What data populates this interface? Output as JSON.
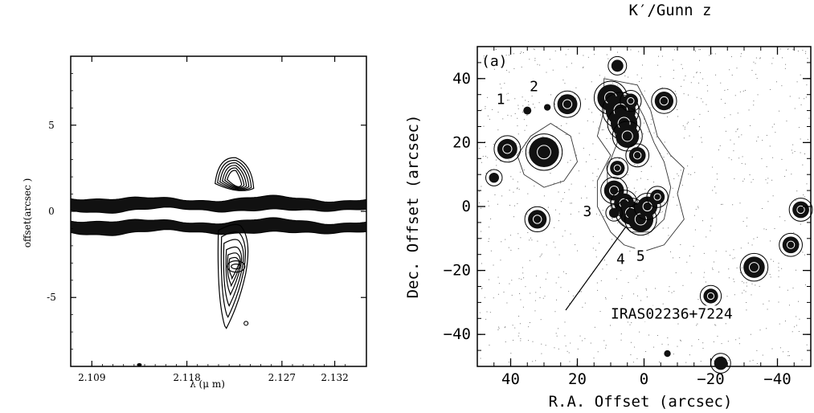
{
  "chart_data": [
    {
      "type": "contour",
      "panel": "left",
      "xlabel": "λ (μ m)",
      "ylabel": "offset(arcsec    )",
      "xlim": [
        2.107,
        2.135
      ],
      "ylim": [
        -9,
        9
      ],
      "x_ticks": [
        2.109,
        2.118,
        2.127,
        2.132
      ],
      "x_tick_labels": [
        "2.109",
        "2.118",
        "2.127",
        "2.132"
      ],
      "y_ticks": [
        5,
        0,
        -5
      ],
      "y_tick_labels": [
        "5",
        "0",
        "-5"
      ],
      "bands": [
        {
          "name": "upper",
          "offset": 0.4
        },
        {
          "name": "lower",
          "offset": -0.9
        }
      ],
      "features": [
        {
          "name": "north-knot",
          "lambda": 2.1225,
          "offset": 1.8
        },
        {
          "name": "south-knot",
          "lambda": 2.1225,
          "offset": -3.2
        },
        {
          "name": "small-blob",
          "lambda": 2.1236,
          "offset": -6.5
        }
      ]
    },
    {
      "type": "contour",
      "panel": "right",
      "title": "K′/Gunn z",
      "panel_label": "(a)",
      "xlabel": "R.A. Offset (arcsec)",
      "ylabel": "Dec. Offset (arcsec)",
      "xlim": [
        50,
        -50
      ],
      "ylim": [
        -50,
        50
      ],
      "x_ticks": [
        40,
        20,
        0,
        -20,
        -40
      ],
      "x_tick_labels": [
        "40",
        "20",
        "0",
        "−20",
        "−40"
      ],
      "y_ticks": [
        40,
        20,
        0,
        -20,
        -40
      ],
      "y_tick_labels": [
        "40",
        "20",
        "0",
        "−20",
        "−40"
      ],
      "annotations": [
        {
          "text": "1",
          "ra": 43,
          "dec": 32
        },
        {
          "text": "2",
          "ra": 33,
          "dec": 36
        },
        {
          "text": "3",
          "ra": 17,
          "dec": -3
        },
        {
          "text": "4",
          "ra": 7,
          "dec": -18
        },
        {
          "text": "5",
          "ra": 1,
          "dec": -17
        },
        {
          "text": "IRAS02236+7224",
          "ra": 10,
          "dec": -35
        }
      ],
      "sources": [
        {
          "ra": 8,
          "dec": 44,
          "r": 1.8
        },
        {
          "ra": 35,
          "dec": 30,
          "r": 1.2
        },
        {
          "ra": 29,
          "dec": 31,
          "r": 1.0
        },
        {
          "ra": 23,
          "dec": 32,
          "r": 3.0
        },
        {
          "ra": 10,
          "dec": 34,
          "r": 4.0
        },
        {
          "ra": 7,
          "dec": 30,
          "r": 4.5
        },
        {
          "ra": 6,
          "dec": 26,
          "r": 4.0
        },
        {
          "ra": 5,
          "dec": 22,
          "r": 3.5
        },
        {
          "ra": 4,
          "dec": 33,
          "r": 2.2
        },
        {
          "ra": 2,
          "dec": 16,
          "r": 2.5
        },
        {
          "ra": -6,
          "dec": 33,
          "r": 2.8
        },
        {
          "ra": 41,
          "dec": 18,
          "r": 3.0
        },
        {
          "ra": 30,
          "dec": 17,
          "r": 4.5
        },
        {
          "ra": 45,
          "dec": 9,
          "r": 1.5
        },
        {
          "ra": 8,
          "dec": 12,
          "r": 2.2
        },
        {
          "ra": 9,
          "dec": 5,
          "r": 3.0
        },
        {
          "ra": 6,
          "dec": 1,
          "r": 3.0
        },
        {
          "ra": 4,
          "dec": -2,
          "r": 3.5
        },
        {
          "ra": 1,
          "dec": -4,
          "r": 3.8
        },
        {
          "ra": -1,
          "dec": 0,
          "r": 3.0
        },
        {
          "ra": -4,
          "dec": 3,
          "r": 2.2
        },
        {
          "ra": 32,
          "dec": -4,
          "r": 2.8
        },
        {
          "ra": 9,
          "dec": -2,
          "r": 1.5
        },
        {
          "ra": -20,
          "dec": -28,
          "r": 2.2
        },
        {
          "ra": -33,
          "dec": -19,
          "r": 3.2
        },
        {
          "ra": -44,
          "dec": -12,
          "r": 2.5
        },
        {
          "ra": -47,
          "dec": -1,
          "r": 2.5
        },
        {
          "ra": -7,
          "dec": -46,
          "r": 1.0
        },
        {
          "ra": -23,
          "dec": -49,
          "r": 2.0
        }
      ]
    }
  ]
}
